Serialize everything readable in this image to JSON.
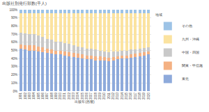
{
  "chart_data": {
    "type": "bar",
    "title": "出版社別発行部数(千人)",
    "x_label": "出版年(西暦)",
    "legend_title": "地域",
    "categories": [
      "1991",
      "1992",
      "1993",
      "1994",
      "1995",
      "1996",
      "1997",
      "1998",
      "1999",
      "2000",
      "2001",
      "2002",
      "2003",
      "2004",
      "2005",
      "2006",
      "2007",
      "2008",
      "2009",
      "2010",
      "2011",
      "2012",
      "2013",
      "2014",
      "2015",
      "2016",
      "2017",
      "2018",
      "2019",
      "2020"
    ],
    "series": [
      {
        "name": "東北",
        "color": "#8eaadb",
        "values": [
          52,
          51,
          50,
          50,
          49,
          48,
          47,
          46,
          45,
          45,
          44,
          43,
          42,
          41,
          40,
          39,
          39,
          38,
          38,
          38,
          37,
          38,
          39,
          40,
          40,
          41,
          42,
          43,
          44,
          45
        ]
      },
      {
        "name": "関東・甲信越",
        "color": "#f4b183",
        "values": [
          5,
          5,
          6,
          6,
          6,
          6,
          5,
          5,
          5,
          5,
          5,
          5,
          5,
          5,
          5,
          5,
          5,
          5,
          5,
          4,
          4,
          4,
          4,
          4,
          4,
          4,
          4,
          4,
          4,
          4
        ]
      },
      {
        "name": "中国・四国",
        "color": "#c9c9c9",
        "values": [
          15,
          15,
          14,
          14,
          13,
          13,
          12,
          12,
          11,
          11,
          10,
          10,
          9,
          9,
          9,
          8,
          8,
          8,
          7,
          7,
          7,
          7,
          6,
          6,
          6,
          6,
          5,
          5,
          5,
          5
        ]
      },
      {
        "name": "九州・沖縄",
        "color": "#fbe3a0",
        "values": [
          24,
          25,
          26,
          26,
          28,
          29,
          32,
          33,
          35,
          35,
          37,
          38,
          40,
          41,
          42,
          44,
          44,
          45,
          46,
          47,
          48,
          47,
          47,
          46,
          46,
          45,
          45,
          44,
          43,
          42
        ]
      },
      {
        "name": "その他",
        "color": "#9dc3e6",
        "values": [
          4,
          4,
          4,
          4,
          4,
          4,
          4,
          4,
          4,
          4,
          4,
          4,
          4,
          4,
          4,
          4,
          4,
          4,
          4,
          4,
          4,
          4,
          4,
          4,
          4,
          4,
          4,
          4,
          4,
          4
        ]
      }
    ],
    "ylim": [
      0,
      100
    ],
    "yticks": [
      {
        "value": 0,
        "label": "0%"
      },
      {
        "value": 10,
        "label": "10%"
      },
      {
        "value": 20,
        "label": "20%"
      },
      {
        "value": 30,
        "label": "30%"
      },
      {
        "value": 40,
        "label": "40%"
      },
      {
        "value": 50,
        "label": "50%"
      },
      {
        "value": 60,
        "label": "60%"
      },
      {
        "value": 70,
        "label": "70%"
      },
      {
        "value": 80,
        "label": "80%"
      },
      {
        "value": 90,
        "label": "90%"
      },
      {
        "value": 100,
        "label": "100%"
      }
    ],
    "stacked": true,
    "grid": true,
    "legend": "right"
  }
}
